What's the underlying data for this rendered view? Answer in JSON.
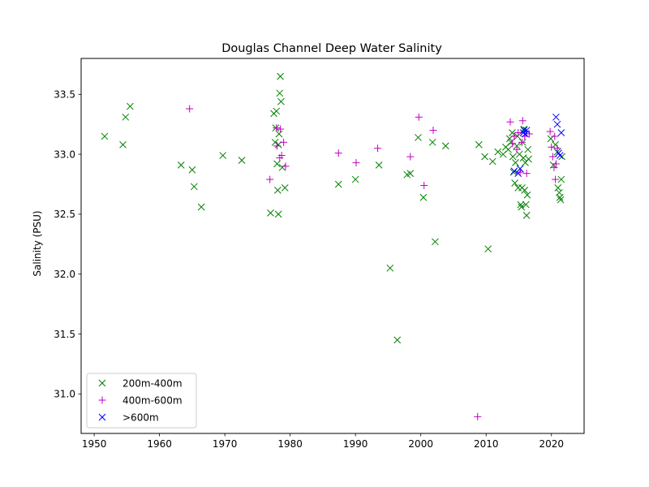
{
  "chart_data": {
    "type": "scatter",
    "title": "Douglas Channel Deep Water Salinity",
    "xlabel": "",
    "ylabel": "Salinity (PSU)",
    "xlim": [
      1948,
      2025
    ],
    "ylim": [
      30.67,
      33.8
    ],
    "xticks": [
      1950,
      1960,
      1970,
      1980,
      1990,
      2000,
      2010,
      2020
    ],
    "yticks": [
      31.0,
      31.5,
      32.0,
      32.5,
      33.0,
      33.5
    ],
    "ytick_labels": [
      "31.0",
      "31.5",
      "32.0",
      "32.5",
      "33.0",
      "33.5"
    ],
    "legend_position": "lower-left",
    "grid": false,
    "series": [
      {
        "name": "200m-400m",
        "marker": "x",
        "color": "#008000",
        "points": [
          [
            1951.6,
            33.15
          ],
          [
            1954.4,
            33.08
          ],
          [
            1954.8,
            33.31
          ],
          [
            1955.5,
            33.4
          ],
          [
            1963.3,
            32.91
          ],
          [
            1965.0,
            32.87
          ],
          [
            1965.3,
            32.73
          ],
          [
            1966.4,
            32.56
          ],
          [
            1969.7,
            32.99
          ],
          [
            1972.6,
            32.95
          ],
          [
            1977.0,
            32.51
          ],
          [
            1977.5,
            33.34
          ],
          [
            1977.7,
            33.1
          ],
          [
            1977.8,
            33.22
          ],
          [
            1977.9,
            33.36
          ],
          [
            1978.0,
            32.92
          ],
          [
            1978.1,
            32.7
          ],
          [
            1978.2,
            33.08
          ],
          [
            1978.3,
            33.17
          ],
          [
            1978.2,
            32.5
          ],
          [
            1978.4,
            33.51
          ],
          [
            1978.5,
            33.65
          ],
          [
            1978.6,
            33.44
          ],
          [
            1978.8,
            32.89
          ],
          [
            1979.2,
            32.72
          ],
          [
            1987.4,
            32.75
          ],
          [
            1990.0,
            32.79
          ],
          [
            1993.6,
            32.91
          ],
          [
            1995.3,
            32.05
          ],
          [
            1996.4,
            31.45
          ],
          [
            1997.9,
            32.83
          ],
          [
            1998.4,
            32.84
          ],
          [
            1999.6,
            33.14
          ],
          [
            2000.4,
            32.64
          ],
          [
            2001.8,
            33.1
          ],
          [
            2002.2,
            32.27
          ],
          [
            2003.8,
            33.07
          ],
          [
            2008.9,
            33.08
          ],
          [
            2009.8,
            32.98
          ],
          [
            2010.3,
            32.21
          ],
          [
            2011.0,
            32.94
          ],
          [
            2011.8,
            33.02
          ],
          [
            2012.6,
            33.0
          ],
          [
            2013.0,
            33.06
          ],
          [
            2013.4,
            33.04
          ],
          [
            2013.6,
            33.13
          ],
          [
            2013.8,
            33.1
          ],
          [
            2014.0,
            33.18
          ],
          [
            2014.1,
            32.98
          ],
          [
            2014.2,
            32.85
          ],
          [
            2014.4,
            32.76
          ],
          [
            2014.5,
            32.93
          ],
          [
            2014.7,
            33.07
          ],
          [
            2014.8,
            33.15
          ],
          [
            2014.9,
            32.72
          ],
          [
            2015.1,
            33.0
          ],
          [
            2015.2,
            32.88
          ],
          [
            2015.3,
            32.58
          ],
          [
            2015.4,
            32.56
          ],
          [
            2015.5,
            32.72
          ],
          [
            2015.6,
            33.1
          ],
          [
            2015.7,
            32.97
          ],
          [
            2015.8,
            33.21
          ],
          [
            2015.9,
            32.7
          ],
          [
            2016.0,
            32.93
          ],
          [
            2016.1,
            32.58
          ],
          [
            2016.2,
            32.49
          ],
          [
            2016.3,
            32.66
          ],
          [
            2016.4,
            33.04
          ],
          [
            2016.5,
            32.96
          ],
          [
            2019.9,
            33.13
          ],
          [
            2020.3,
            32.91
          ],
          [
            2020.6,
            33.08
          ],
          [
            2020.9,
            33.02
          ],
          [
            2021.0,
            32.72
          ],
          [
            2021.2,
            32.68
          ],
          [
            2021.3,
            32.64
          ],
          [
            2021.4,
            32.62
          ],
          [
            2021.5,
            32.79
          ],
          [
            2021.6,
            32.98
          ]
        ]
      },
      {
        "name": "400m-600m",
        "marker": "+",
        "color": "#c000c0",
        "points": [
          [
            1964.6,
            33.38
          ],
          [
            1976.9,
            32.79
          ],
          [
            1977.9,
            33.22
          ],
          [
            1978.0,
            33.07
          ],
          [
            1978.4,
            32.97
          ],
          [
            1978.5,
            33.21
          ],
          [
            1978.7,
            32.99
          ],
          [
            1979.0,
            33.1
          ],
          [
            1979.3,
            32.9
          ],
          [
            1987.4,
            33.01
          ],
          [
            1990.1,
            32.93
          ],
          [
            1993.4,
            33.05
          ],
          [
            1998.4,
            32.98
          ],
          [
            1999.7,
            33.31
          ],
          [
            2000.5,
            32.74
          ],
          [
            2001.9,
            33.2
          ],
          [
            2008.7,
            30.81
          ],
          [
            2013.7,
            33.27
          ],
          [
            2014.0,
            33.09
          ],
          [
            2014.3,
            33.15
          ],
          [
            2014.7,
            33.04
          ],
          [
            2014.9,
            33.18
          ],
          [
            2015.2,
            32.85
          ],
          [
            2015.5,
            33.1
          ],
          [
            2015.6,
            33.28
          ],
          [
            2015.9,
            33.15
          ],
          [
            2016.2,
            32.84
          ],
          [
            2016.6,
            33.17
          ],
          [
            2019.8,
            33.19
          ],
          [
            2020.0,
            33.06
          ],
          [
            2020.2,
            32.98
          ],
          [
            2020.4,
            32.89
          ],
          [
            2020.5,
            33.15
          ],
          [
            2020.6,
            32.79
          ],
          [
            2020.7,
            32.92
          ],
          [
            2020.9,
            33.05
          ]
        ]
      },
      {
        "name": ">600m",
        "marker": "x",
        "color": "#0000ff",
        "points": [
          [
            2014.3,
            32.86
          ],
          [
            2014.9,
            32.84
          ],
          [
            2015.2,
            32.88
          ],
          [
            2015.7,
            33.18
          ],
          [
            2015.8,
            33.2
          ],
          [
            2016.0,
            33.17
          ],
          [
            2016.2,
            33.2
          ],
          [
            2020.7,
            33.31
          ],
          [
            2020.9,
            33.25
          ],
          [
            2021.1,
            33.01
          ],
          [
            2021.3,
            32.99
          ],
          [
            2021.5,
            33.18
          ]
        ]
      }
    ]
  }
}
